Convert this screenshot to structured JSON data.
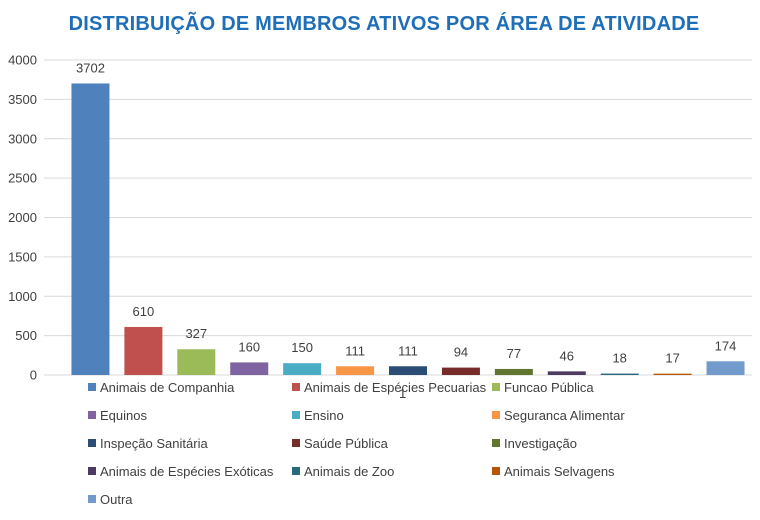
{
  "chart_data": {
    "type": "bar",
    "title": "DISTRIBUIÇÃO DE MEMBROS ATIVOS POR ÁREA DE ATIVIDADE",
    "xlabel": "",
    "ylabel": "",
    "ylim": [
      0,
      4000
    ],
    "yticks": [
      "0",
      "500",
      "1000",
      "1500",
      "2000",
      "2500",
      "3000",
      "3500",
      "4000"
    ],
    "grid": true,
    "legend_position": "bottom",
    "categories": [
      "Animais de Companhia",
      "Animais de Espécies Pecuarias",
      "Funcao Pública",
      "Equinos",
      "Ensino",
      "Seguranca Alimentar",
      "Inspeção Sanitária",
      "Saúde Pública",
      "Investigação",
      "Animais de Espécies Exóticas",
      "Animais de Zoo",
      "Animais Selvagens",
      "Outra"
    ],
    "values": [
      3702,
      610,
      327,
      160,
      150,
      111,
      111,
      94,
      77,
      46,
      18,
      17,
      174
    ],
    "data_labels": [
      "3702",
      "610",
      "327",
      "160",
      "150",
      "111",
      "111",
      "94",
      "77",
      "46",
      "18",
      "17",
      "174"
    ],
    "colors": [
      "#4f81bd",
      "#c0504d",
      "#9bbb59",
      "#8064a2",
      "#4bacc6",
      "#f79646",
      "#2c4d75",
      "#772c2a",
      "#5f7530",
      "#4d3b62",
      "#276a7c",
      "#b65708",
      "#729aca"
    ],
    "stray_label": "1"
  }
}
